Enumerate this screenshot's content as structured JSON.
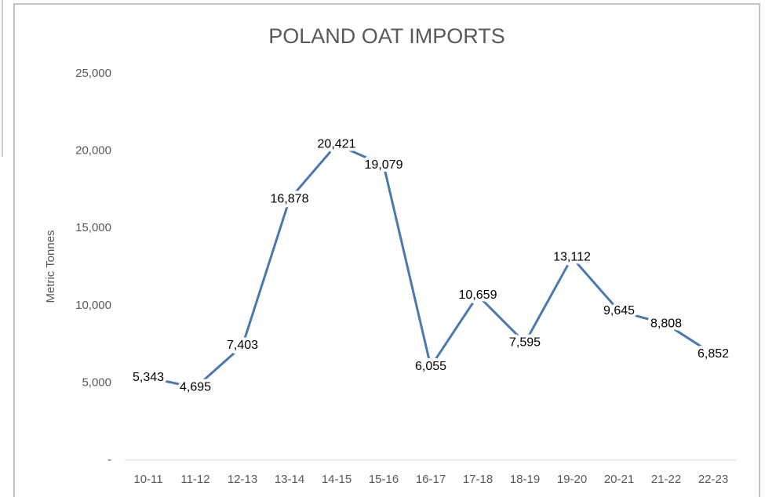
{
  "chart_data": {
    "type": "line",
    "title": "POLAND OAT IMPORTS",
    "y_label": "Metric Tonnes",
    "categories": [
      "10-11",
      "11-12",
      "12-13",
      "13-14",
      "14-15",
      "15-16",
      "16-17",
      "17-18",
      "18-19",
      "19-20",
      "20-21",
      "21-22",
      "22-23"
    ],
    "values": [
      5343,
      4695,
      7403,
      16878,
      20421,
      19079,
      6055,
      10659,
      7595,
      13112,
      9645,
      8808,
      6852
    ],
    "value_labels": [
      "5,343",
      "4,695",
      "7,403",
      "16,878",
      "20,421",
      "19,079",
      "6,055",
      "10,659",
      "7,595",
      "13,112",
      "9,645",
      "8,808",
      "6,852"
    ],
    "color": "#4a78b0",
    "ylim": [
      0,
      25000
    ],
    "yticks": [
      {
        "value": 0,
        "label": "-"
      },
      {
        "value": 5000,
        "label": "5,000"
      },
      {
        "value": 10000,
        "label": "10,000"
      },
      {
        "value": 15000,
        "label": "15,000"
      },
      {
        "value": 20000,
        "label": "20,000"
      },
      {
        "value": 25000,
        "label": "25,000"
      }
    ],
    "grid": false
  }
}
